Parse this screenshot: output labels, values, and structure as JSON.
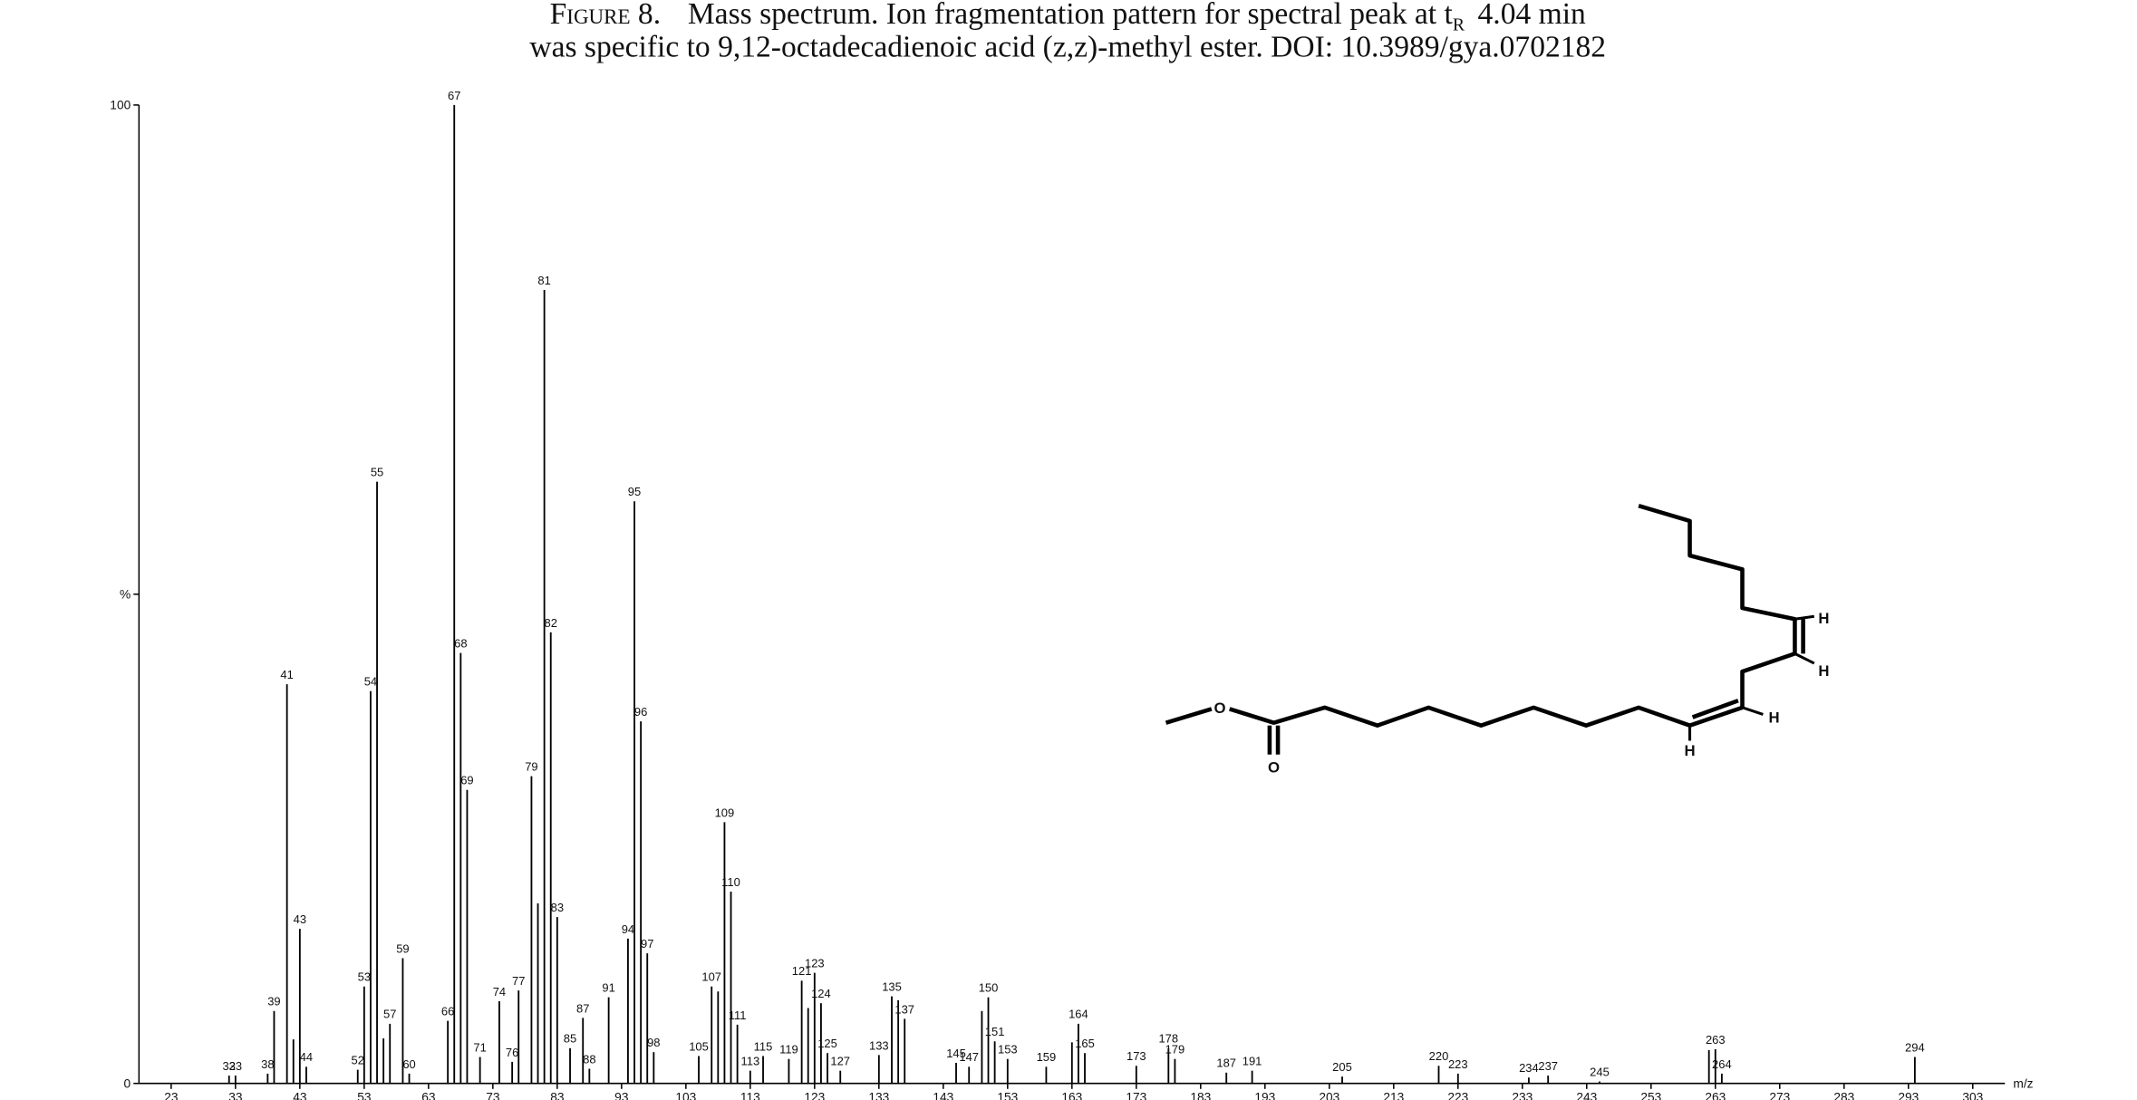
{
  "chart_data": {
    "type": "spectrum",
    "title": {
      "label": "Figure 8.",
      "text_1": "Mass spectrum. Ion fragmentation pattern for spectral peak at t",
      "subscript": "R",
      "text_2": "4.04 min",
      "line_2": "was specific to 9,12-octadecadienoic acid (z,z)-methyl ester. DOI: 10.3989/gya.0702182"
    },
    "xlabel": "m/z",
    "xlim": [
      18,
      308
    ],
    "ylim": [
      0,
      100
    ],
    "xticks": [
      23,
      33,
      43,
      53,
      63,
      73,
      83,
      93,
      103,
      113,
      123,
      133,
      143,
      153,
      163,
      173,
      183,
      193,
      203,
      213,
      223,
      233,
      243,
      253,
      263,
      273,
      283,
      293,
      303
    ],
    "yticks": [
      0,
      {
        "value": 50,
        "label": "%"
      },
      100
    ],
    "color": "#000000",
    "x": [
      32,
      33,
      38,
      39,
      41,
      43,
      44,
      52,
      53,
      54,
      55,
      57,
      59,
      60,
      66,
      67,
      68,
      69,
      71,
      74,
      76,
      77,
      79,
      81,
      82,
      83,
      85,
      87,
      88,
      91,
      94,
      95,
      96,
      97,
      98,
      105,
      107,
      109,
      110,
      111,
      113,
      115,
      119,
      121,
      123,
      124,
      125,
      127,
      133,
      135,
      137,
      145,
      147,
      150,
      151,
      153,
      159,
      164,
      165,
      173,
      178,
      179,
      187,
      191,
      205,
      220,
      223,
      234,
      237,
      245,
      263,
      264,
      294
    ],
    "values": [
      0.8,
      0.8,
      1,
      7.4,
      40.8,
      15.8,
      1.7,
      1.4,
      9.9,
      40.1,
      61.5,
      6.1,
      12.8,
      1,
      6.4,
      100,
      44,
      30,
      2.7,
      8.4,
      2.2,
      9.5,
      31.4,
      81.1,
      46.1,
      17,
      3.6,
      6.7,
      1.5,
      8.8,
      14.8,
      59.5,
      37,
      13.3,
      3.2,
      2.8,
      9.9,
      26.7,
      19.6,
      6,
      1.3,
      2.8,
      2.5,
      10.5,
      11.3,
      8.2,
      3.1,
      1.3,
      2.9,
      8.9,
      6.6,
      2.1,
      1.7,
      8.8,
      4.3,
      2.5,
      1.7,
      6.1,
      3.1,
      1.8,
      3.6,
      2.5,
      1.1,
      1.3,
      0.7,
      1.8,
      1,
      0.6,
      0.8,
      0.2,
      3.5,
      1,
      2.7
    ],
    "minor_x": [
      42,
      56,
      80,
      108,
      122,
      136,
      149,
      163,
      262
    ],
    "minor_values": [
      4.5,
      4.6,
      18.4,
      9.4,
      7.7,
      8.5,
      7.4,
      4.2,
      3.4
    ]
  },
  "structure": {
    "atoms": [
      "O",
      "O",
      "H",
      "H",
      "H",
      "H"
    ]
  }
}
